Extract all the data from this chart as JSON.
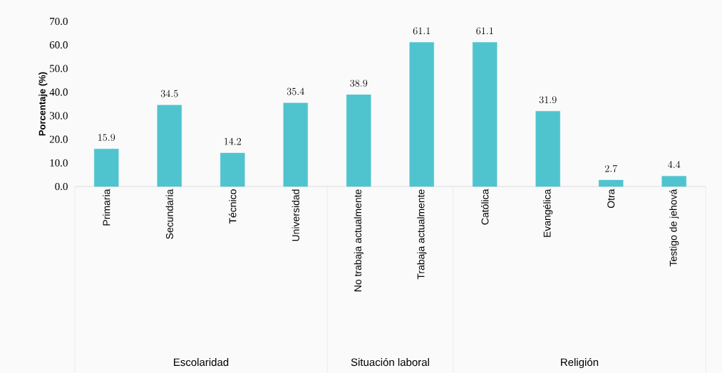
{
  "chart_data": {
    "type": "bar",
    "ylabel": "Porcentaje (%)",
    "categories": [
      "Primaria",
      "Secundaria",
      "Técnico",
      "Universidad",
      "No trabaja actualmente",
      "Trabaja actualmente",
      "Católica",
      "Evangélica",
      "Otra",
      "Testigo de jehová"
    ],
    "values": [
      15.9,
      34.5,
      14.2,
      35.4,
      38.9,
      61.1,
      61.1,
      31.9,
      2.7,
      4.4
    ],
    "color": "#4fc4cf",
    "ylim": [
      0,
      70
    ],
    "yticks": [
      {
        "value": 0,
        "label": "0.0"
      },
      {
        "value": 10,
        "label": "10.0"
      },
      {
        "value": 20,
        "label": "20.0"
      },
      {
        "value": 30,
        "label": "30.0"
      },
      {
        "value": 40,
        "label": "40.0"
      },
      {
        "value": 50,
        "label": "50.0"
      },
      {
        "value": 60,
        "label": "60.0"
      },
      {
        "value": 70,
        "label": "70.0"
      }
    ],
    "data_labels": true,
    "grid": false,
    "annotations": [
      "Escolaridad",
      "Situación laboral",
      "Religión"
    ]
  }
}
